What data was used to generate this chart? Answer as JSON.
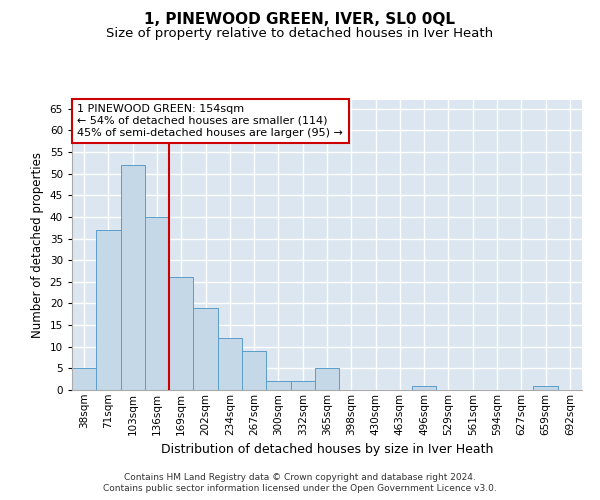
{
  "title": "1, PINEWOOD GREEN, IVER, SL0 0QL",
  "subtitle": "Size of property relative to detached houses in Iver Heath",
  "xlabel": "Distribution of detached houses by size in Iver Heath",
  "ylabel": "Number of detached properties",
  "categories": [
    "38sqm",
    "71sqm",
    "103sqm",
    "136sqm",
    "169sqm",
    "202sqm",
    "234sqm",
    "267sqm",
    "300sqm",
    "332sqm",
    "365sqm",
    "398sqm",
    "430sqm",
    "463sqm",
    "496sqm",
    "529sqm",
    "561sqm",
    "594sqm",
    "627sqm",
    "659sqm",
    "692sqm"
  ],
  "values": [
    5,
    37,
    52,
    40,
    26,
    19,
    12,
    9,
    2,
    2,
    5,
    0,
    0,
    0,
    1,
    0,
    0,
    0,
    0,
    1,
    0
  ],
  "bar_color": "#c5d8e8",
  "bar_edge_color": "#5a9ec9",
  "background_color": "#dce6f0",
  "grid_color": "#ffffff",
  "redline_x": 3.5,
  "annotation_lines": [
    "1 PINEWOOD GREEN: 154sqm",
    "← 54% of detached houses are smaller (114)",
    "45% of semi-detached houses are larger (95) →"
  ],
  "annotation_box_color": "#ffffff",
  "annotation_box_edge_color": "#cc0000",
  "ylim": [
    0,
    67
  ],
  "yticks": [
    0,
    5,
    10,
    15,
    20,
    25,
    30,
    35,
    40,
    45,
    50,
    55,
    60,
    65
  ],
  "footer1": "Contains HM Land Registry data © Crown copyright and database right 2024.",
  "footer2": "Contains public sector information licensed under the Open Government Licence v3.0.",
  "title_fontsize": 11,
  "subtitle_fontsize": 9.5,
  "xlabel_fontsize": 9,
  "ylabel_fontsize": 8.5,
  "tick_fontsize": 7.5,
  "annotation_fontsize": 8,
  "footer_fontsize": 6.5
}
